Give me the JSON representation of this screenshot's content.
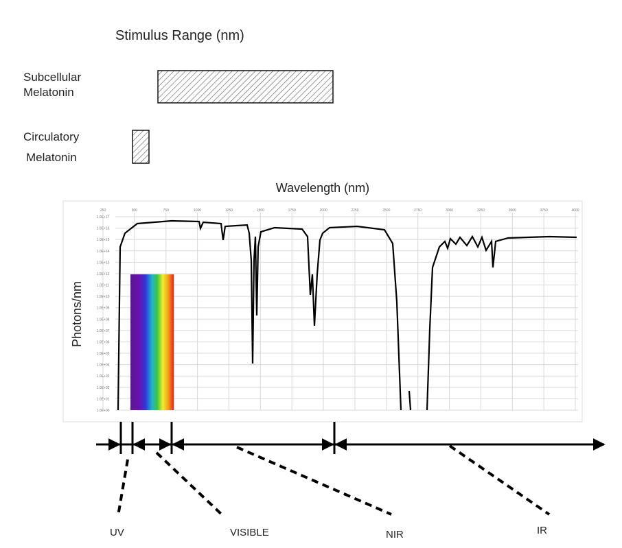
{
  "header": {
    "title": "Stimulus Range (nm)"
  },
  "stimuli": [
    {
      "label_lines": [
        "Subcellular",
        "Melatonin"
      ]
    },
    {
      "label_lines": [
        "Circulatory",
        "Melatonin"
      ]
    }
  ],
  "spectrum_chart": {
    "x_label": "Wavelength (nm)",
    "y_label": "Photons/nm",
    "xticks": [
      "250",
      "500",
      "750",
      "1000",
      "1250",
      "1500",
      "1750",
      "2000",
      "2250",
      "2500",
      "2750",
      "3000",
      "3250",
      "3500",
      "3750",
      "4000"
    ],
    "yticks": [
      "1.0E+17",
      "1.0E+16",
      "1.0E+15",
      "1.0E+14",
      "1.0E+13",
      "1.0E+12",
      "1.0E+11",
      "1.0E+10",
      "1.0E+09",
      "1.0E+08",
      "1.0E+07",
      "1.0E+06",
      "1.0E+05",
      "1.0E+04",
      "1.0E+03",
      "1.0E+02",
      "1.0E+01",
      "1.0E+00"
    ]
  },
  "bands": [
    "UV",
    "VISIBLE",
    "NIR",
    "IR"
  ]
}
